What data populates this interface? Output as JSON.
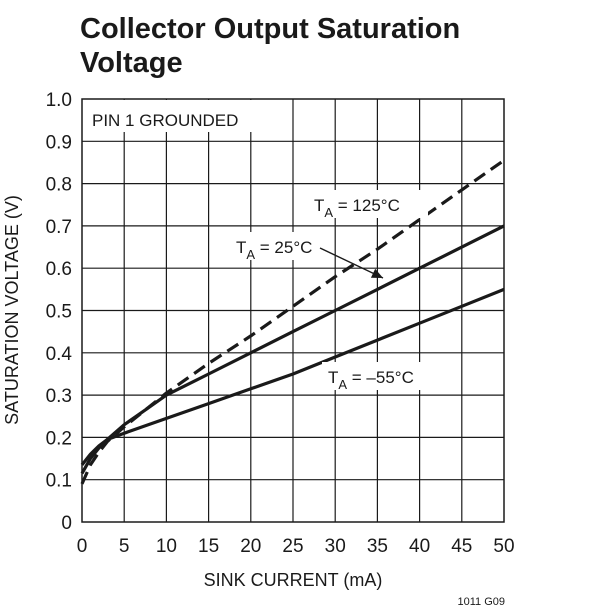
{
  "chart_data": {
    "type": "line",
    "title_line1": "Collector Output Saturation",
    "title_line2": "Voltage",
    "xlabel": "SINK CURRENT (mA)",
    "ylabel": "SATURATION VOLTAGE (V)",
    "xlim": [
      0,
      50
    ],
    "ylim": [
      0,
      1.0
    ],
    "xticks": [
      0,
      5,
      10,
      15,
      20,
      25,
      30,
      35,
      40,
      45,
      50
    ],
    "yticks": [
      0,
      0.1,
      0.2,
      0.3,
      0.4,
      0.5,
      0.6,
      0.7,
      0.8,
      0.9,
      1.0
    ],
    "xtick_labels": [
      "0",
      "5",
      "10",
      "15",
      "20",
      "25",
      "30",
      "35",
      "40",
      "45",
      "50"
    ],
    "ytick_labels": [
      "0",
      "0.1",
      "0.2",
      "0.3",
      "0.4",
      "0.5",
      "0.6",
      "0.7",
      "0.8",
      "0.9",
      "1.0"
    ],
    "grid": true,
    "condition_note": "PIN 1 GROUNDED",
    "figure_code": "1011 G09",
    "series": [
      {
        "label_main": "T",
        "label_sub": "A",
        "label_rest": " = 125°C",
        "style": "dashed",
        "x": [
          0,
          1,
          2,
          3,
          5,
          7.5,
          10,
          15,
          20,
          25,
          30,
          35,
          40,
          45,
          50
        ],
        "y": [
          0.09,
          0.135,
          0.165,
          0.19,
          0.225,
          0.265,
          0.305,
          0.375,
          0.44,
          0.51,
          0.58,
          0.645,
          0.715,
          0.785,
          0.855
        ]
      },
      {
        "label_main": "T",
        "label_sub": "A",
        "label_rest": " = 25°C",
        "style": "solid",
        "x": [
          0,
          1,
          2,
          3,
          5,
          7.5,
          10,
          15,
          20,
          25,
          30,
          35,
          40,
          45,
          50
        ],
        "y": [
          0.115,
          0.15,
          0.175,
          0.195,
          0.23,
          0.265,
          0.3,
          0.35,
          0.4,
          0.45,
          0.5,
          0.55,
          0.6,
          0.65,
          0.7
        ]
      },
      {
        "label_main": "T",
        "label_sub": "A",
        "label_rest": " = –55°C",
        "style": "solid",
        "x": [
          0,
          1,
          2,
          3,
          5,
          10,
          15,
          20,
          25,
          30,
          35,
          40,
          45,
          50
        ],
        "y": [
          0.135,
          0.16,
          0.18,
          0.195,
          0.21,
          0.245,
          0.28,
          0.315,
          0.35,
          0.39,
          0.43,
          0.47,
          0.51,
          0.55
        ]
      }
    ]
  }
}
